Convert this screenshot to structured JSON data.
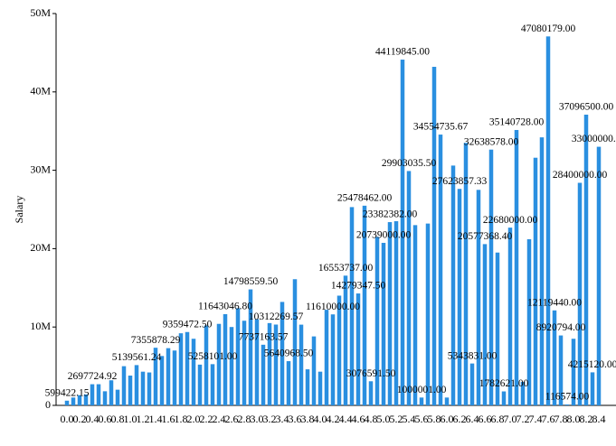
{
  "chart_data": {
    "type": "bar",
    "y_label": "Salary",
    "color": "#2a8fe0",
    "categories": [
      "0.0",
      null,
      "0.2",
      null,
      "0.4",
      null,
      "0.6",
      null,
      "0.8",
      null,
      "1.0",
      null,
      "1.2",
      null,
      "1.4",
      null,
      "1.6",
      null,
      "1.8",
      null,
      "2.0",
      null,
      "2.2",
      null,
      "2.4",
      null,
      "2.6",
      null,
      "2.8",
      null,
      "3.0",
      null,
      "3.2",
      null,
      "3.4",
      null,
      "3.6",
      null,
      "3.8",
      null,
      "4.0",
      null,
      "4.2",
      null,
      "4.4",
      null,
      "4.6",
      null,
      "4.8",
      null,
      "5.0",
      null,
      "5.2",
      null,
      "5.4",
      null,
      "5.6",
      null,
      "5.8",
      null,
      "6.0",
      null,
      "6.2",
      null,
      "6.4",
      null,
      "6.6",
      null,
      "6.8",
      null,
      "7.0",
      null,
      "7.2",
      null,
      "7.4",
      null,
      "7.6",
      null,
      "7.8",
      null,
      "8.0",
      null,
      "8.2",
      null,
      "8.4"
    ],
    "values": [
      599422.15,
      1000000,
      1300000,
      1400000,
      2697724.92,
      2700000,
      1800000,
      3200000,
      2000000,
      5000000,
      3800000,
      5139561.24,
      4300000,
      4200000,
      7355878.29,
      6300000,
      7300000,
      7000000,
      9200000,
      9359472.5,
      8500000,
      5200000,
      10200000,
      5258101,
      10400000,
      11643046.8,
      10000000,
      12400000,
      10800000,
      14798559.5,
      11000000,
      7737163.57,
      10500000,
      10312269.57,
      13200000,
      5640968.5,
      16100000,
      10300000,
      4600000,
      8800000,
      4300000,
      12200000,
      11610000,
      14000000,
      16553737,
      25300000,
      14279347.5,
      25478462,
      3076591.5,
      21500000,
      20739000,
      23382382,
      23500000,
      44119845,
      29903035.5,
      23000000,
      1000001,
      23200000,
      43200000,
      34554735.67,
      1000000,
      30600000,
      27623857.33,
      33500000,
      5343831,
      27500000,
      20577368.4,
      32638578,
      19500000,
      1782621,
      22680000,
      35140728,
      3000000,
      21200000,
      31600000,
      34200000,
      47080179,
      12119440,
      8920794,
      116574,
      8500000,
      28400000,
      37096500,
      4215120,
      33000000
    ],
    "value_labels": [
      "599422.15",
      null,
      null,
      null,
      "2697724.92",
      null,
      null,
      null,
      null,
      null,
      null,
      "5139561.24",
      null,
      null,
      "7355878.29",
      null,
      null,
      null,
      null,
      "9359472.50",
      null,
      null,
      null,
      "5258101.00",
      null,
      "11643046.80",
      null,
      null,
      null,
      "14798559.50",
      null,
      "7737163.57",
      null,
      "10312269.57",
      null,
      "5640968.50",
      null,
      null,
      null,
      null,
      null,
      null,
      "11610000.00",
      null,
      "16553737.00",
      null,
      "14279347.50",
      "25478462.00",
      "3076591.50",
      null,
      "20739000.00",
      "23382382.00",
      null,
      "44119845.00",
      "29903035.50",
      null,
      "1000001.00",
      null,
      null,
      "34554735.67",
      null,
      null,
      "27623857.33",
      null,
      "5343831.00",
      null,
      "20577368.40",
      "32638578.00",
      null,
      "1782621.00",
      "22680000.00",
      "35140728.00",
      null,
      null,
      null,
      null,
      "47080179.00",
      "12119440.00",
      "8920794.00",
      "116574.00",
      null,
      "28400000.00",
      "37096500.00",
      "4215120.00",
      "33000000.00"
    ],
    "ylim": [
      0,
      50000000
    ],
    "yticks": [
      0,
      {
        "value": 10000000,
        "label": "10M"
      },
      {
        "value": 20000000,
        "label": "20M"
      },
      {
        "value": 30000000,
        "label": "30M"
      },
      {
        "value": 40000000,
        "label": "40M"
      },
      {
        "value": 50000000,
        "label": "50M"
      }
    ]
  }
}
